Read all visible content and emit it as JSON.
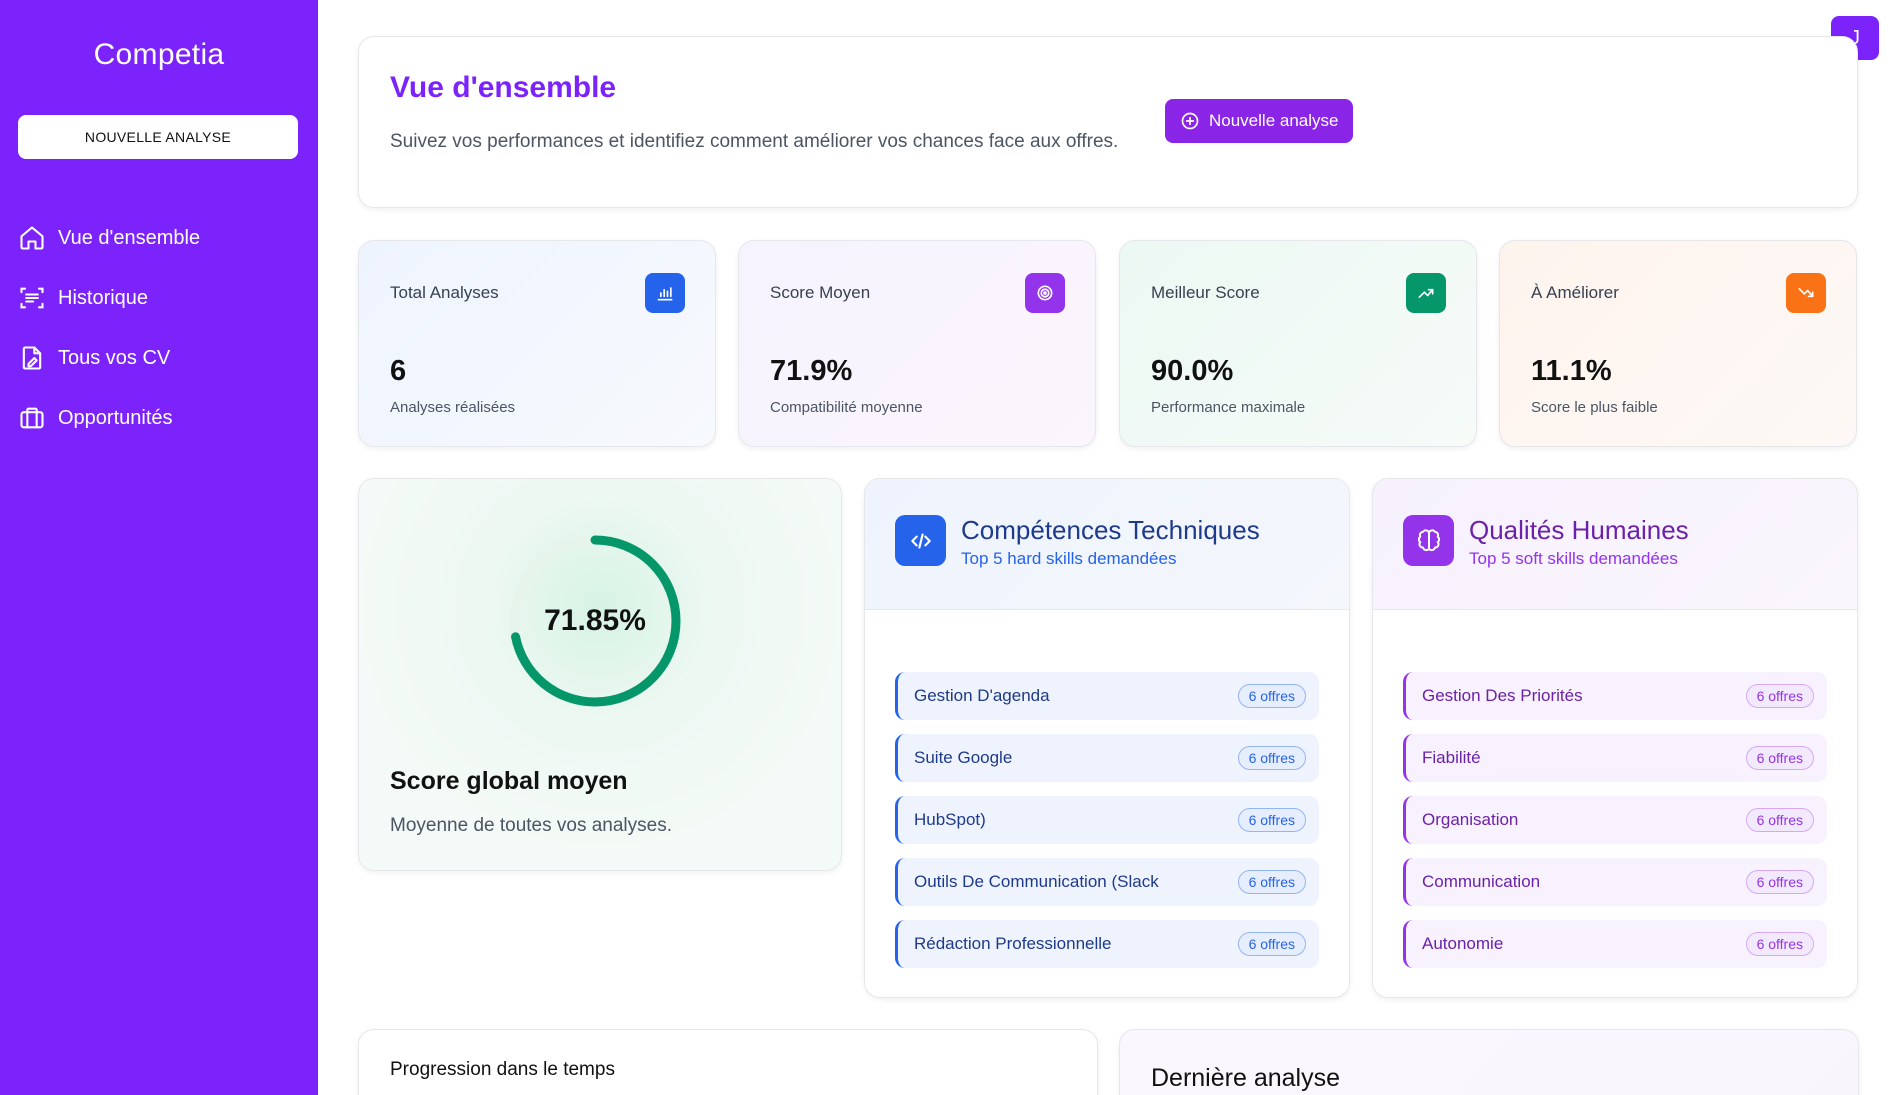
{
  "app": {
    "brand": "Competia",
    "new_analysis_label": "NOUVELLE ANALYSE",
    "avatar_initial": "J"
  },
  "sidebar": {
    "items": [
      {
        "label": "Vue d'ensemble",
        "icon": "home-icon"
      },
      {
        "label": "Historique",
        "icon": "history-scan-icon"
      },
      {
        "label": "Tous vos CV",
        "icon": "document-icon"
      },
      {
        "label": "Opportunités",
        "icon": "briefcase-icon"
      }
    ]
  },
  "header": {
    "title": "Vue d'ensemble",
    "subtitle": "Suivez vos performances et identifiez comment améliorer vos chances face aux offres.",
    "button_label": "Nouvelle analyse"
  },
  "stats": [
    {
      "label": "Total Analyses",
      "value": "6",
      "caption": "Analyses réalisées",
      "icon": "bar-chart-icon",
      "accent": "#2563eb"
    },
    {
      "label": "Score Moyen",
      "value": "71.9%",
      "caption": "Compatibilité moyenne",
      "icon": "target-icon",
      "accent": "#9333ea"
    },
    {
      "label": "Meilleur Score",
      "value": "90.0%",
      "caption": "Performance maximale",
      "icon": "trending-up-icon",
      "accent": "#059669"
    },
    {
      "label": "À Améliorer",
      "value": "11.1%",
      "caption": "Score le plus faible",
      "icon": "trending-down-icon",
      "accent": "#f97316"
    }
  ],
  "score": {
    "value_label": "71.85%",
    "progress_percent": 71.85,
    "title": "Score global moyen",
    "description": "Moyenne de toutes vos analyses.",
    "color": "#059669"
  },
  "hard_skills": {
    "title": "Compétences Techniques",
    "subtitle": "Top 5 hard skills demandées",
    "icon": "code-icon",
    "items": [
      {
        "name": "Gestion D'agenda",
        "count": "6 offres"
      },
      {
        "name": "Suite Google",
        "count": "6 offres"
      },
      {
        "name": "HubSpot)",
        "count": "6 offres"
      },
      {
        "name": "Outils De Communication (Slack",
        "count": "6 offres"
      },
      {
        "name": "Rédaction Professionnelle",
        "count": "6 offres"
      }
    ]
  },
  "soft_skills": {
    "title": "Qualités Humaines",
    "subtitle": "Top 5 soft skills demandées",
    "icon": "brain-icon",
    "items": [
      {
        "name": "Gestion Des Priorités",
        "count": "6 offres"
      },
      {
        "name": "Fiabilité",
        "count": "6 offres"
      },
      {
        "name": "Organisation",
        "count": "6 offres"
      },
      {
        "name": "Communication",
        "count": "6 offres"
      },
      {
        "name": "Autonomie",
        "count": "6 offres"
      }
    ]
  },
  "progression": {
    "title": "Progression dans le temps"
  },
  "last_analysis": {
    "title": "Dernière analyse"
  }
}
